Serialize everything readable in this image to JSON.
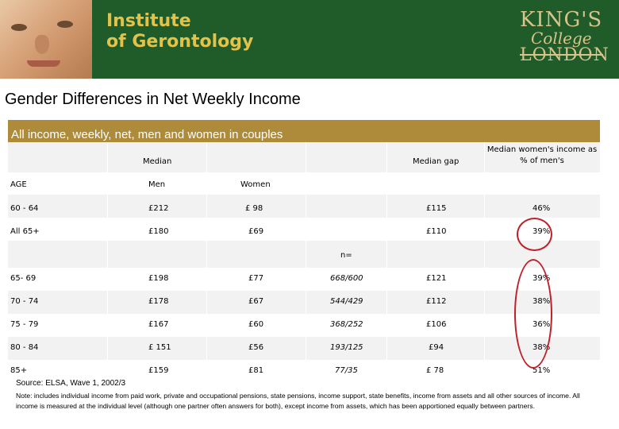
{
  "banner": {
    "institute_line1": "Institute",
    "institute_line2": "of Gerontology",
    "kings_line1": "KING'S",
    "kings_line2": "College",
    "kings_line3": "LONDON"
  },
  "page_title": "Gender Differences in Net Weekly Income",
  "table": {
    "caption": "All income, weekly, net, men and women in couples",
    "header": {
      "median": "Median",
      "median_gap": "Median gap",
      "women_pct": "Median women's income as % of men's",
      "age": "AGE",
      "men": "Men",
      "women": "Women",
      "n": "n="
    },
    "top_rows": [
      {
        "age": "60 - 64",
        "men": "£212",
        "women": "£ 98",
        "n": "",
        "gap": "£115",
        "pct": "46%"
      },
      {
        "age": "All 65+",
        "men": "£180",
        "women": "£69",
        "n": "",
        "gap": "£110",
        "pct": "39%"
      }
    ],
    "rows": [
      {
        "age": "65- 69",
        "men": "£198",
        "women": "£77",
        "n": "668/600",
        "gap": "£121",
        "pct": "39%"
      },
      {
        "age": "70 - 74",
        "men": "£178",
        "women": "£67",
        "n": "544/429",
        "gap": "£112",
        "pct": "38%"
      },
      {
        "age": "75 - 79",
        "men": "£167",
        "women": "£60",
        "n": "368/252",
        "gap": "£106",
        "pct": "36%"
      },
      {
        "age": "80 - 84",
        "men": "£ 151",
        "women": "£56",
        "n": "193/125",
        "gap": "£94",
        "pct": "38%"
      },
      {
        "age": "85+",
        "men": "£159",
        "women": "£81",
        "n": "77/35",
        "gap": "£ 78",
        "pct": "51%"
      }
    ]
  },
  "source": "Source: ELSA, Wave 1, 2002/3",
  "note": "Note: includes individual income from paid work, private and occupational pensions, state pensions, income support, state benefits, income from assets and all other sources of income. All income is measured at the individual level (although one partner often answers for both), except income from assets, which has been apportioned equally between partners."
}
